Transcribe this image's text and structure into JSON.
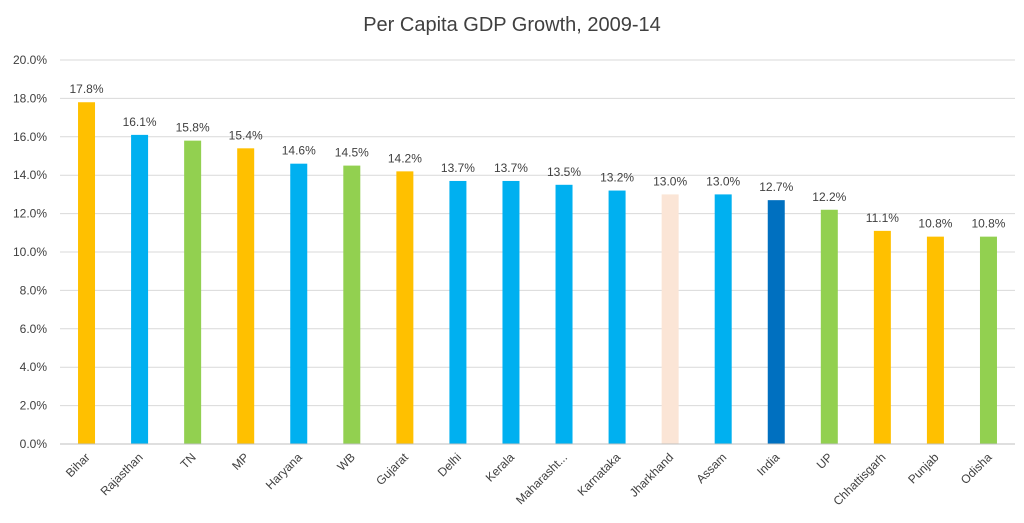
{
  "chart_data": {
    "type": "bar",
    "title": "Per Capita GDP Growth, 2009-14",
    "xlabel": "",
    "ylabel": "",
    "ylim": [
      0,
      20
    ],
    "y_tick_labels": [
      "0.0%",
      "2.0%",
      "4.0%",
      "6.0%",
      "8.0%",
      "10.0%",
      "12.0%",
      "14.0%",
      "16.0%",
      "18.0%",
      "20.0%"
    ],
    "grid": true,
    "legend": "none",
    "categories": [
      "Bihar",
      "Rajasthan",
      "TN",
      "MP",
      "Haryana",
      "WB",
      "Gujarat",
      "Delhi",
      "Kerala",
      "Maharasht...",
      "Karnataka",
      "Jharkhand",
      "Assam",
      "India",
      "UP",
      "Chhattisgarh",
      "Punjab",
      "Odisha"
    ],
    "values": [
      17.8,
      16.1,
      15.8,
      15.4,
      14.6,
      14.5,
      14.2,
      13.7,
      13.7,
      13.5,
      13.2,
      13.0,
      13.0,
      12.7,
      12.2,
      11.1,
      10.8,
      10.8
    ],
    "data_labels": [
      "17.8%",
      "16.1%",
      "15.8%",
      "15.4%",
      "14.6%",
      "14.5%",
      "14.2%",
      "13.7%",
      "13.7%",
      "13.5%",
      "13.2%",
      "13.0%",
      "13.0%",
      "12.7%",
      "12.2%",
      "11.1%",
      "10.8%",
      "10.8%"
    ],
    "colors": [
      "#FFC000",
      "#00B0F0",
      "#92D050",
      "#FFC000",
      "#00B0F0",
      "#92D050",
      "#FFC000",
      "#00B0F0",
      "#00B0F0",
      "#00B0F0",
      "#00B0F0",
      "#FBE5D6",
      "#00B0F0",
      "#0070C0",
      "#92D050",
      "#FFC000",
      "#FFC000",
      "#92D050"
    ]
  }
}
